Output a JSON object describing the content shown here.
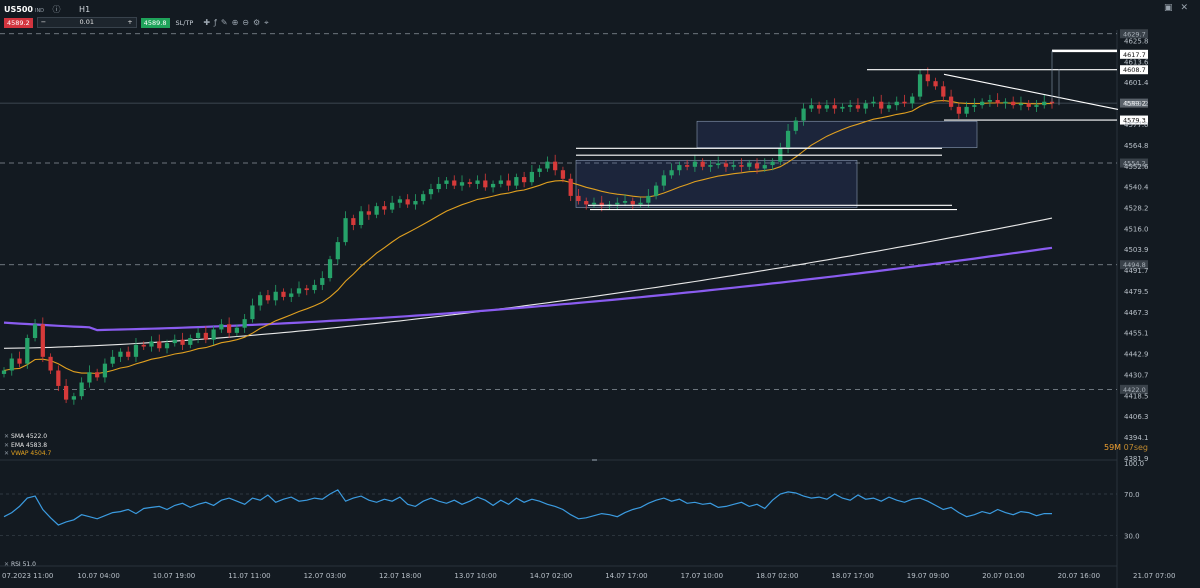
{
  "toolbar": {
    "symbol": "US500",
    "symbol_suffix": "IND",
    "timeframe": "H1",
    "sell_price": "4589.2",
    "quantity": "0.01",
    "buy_price": "4589.8",
    "sltp_label": "SL/TP"
  },
  "legend": {
    "sma": "SMA 4522.0",
    "ema": "EMA 4583.8",
    "vwap": "VWAP 4504.7",
    "rsi": "RSI 51.0"
  },
  "timer": {
    "minutes": "59M",
    "seconds": "07seg"
  },
  "colors": {
    "background": "#131a21",
    "bull": "#26a269",
    "bear": "#d63a3a",
    "sma": "#e8e8e8",
    "ema": "#e0a020",
    "vwap": "#8a5cf0",
    "rsi": "#3b9be0"
  },
  "chart_data": {
    "type": "candlestick",
    "x_axis_labels": [
      "07.2023 11:00",
      "10.07 04:00",
      "10.07 19:00",
      "11.07 11:00",
      "12.07 03:00",
      "12.07 18:00",
      "13.07 10:00",
      "14.07 02:00",
      "14.07 17:00",
      "17.07 10:00",
      "18.07 02:00",
      "18.07 17:00",
      "19.07 09:00",
      "20.07 01:00",
      "20.07 16:00",
      "21.07 07:00"
    ],
    "y_axis_labels": [
      "4625.8",
      "4613.6",
      "4601.4",
      "4589.2",
      "4577.0",
      "4564.8",
      "4552.6",
      "4540.4",
      "4528.2",
      "4516.0",
      "4503.9",
      "4491.7",
      "4479.5",
      "4467.3",
      "4455.1",
      "4442.9",
      "4430.7",
      "4418.5",
      "4406.3",
      "4394.1",
      "4381.9"
    ],
    "ylim": [
      4381.9,
      4631.9
    ],
    "horizontal_levels": [
      "4629.7",
      "4554.2",
      "4494.8",
      "4422.0"
    ],
    "price_tags": [
      "4617.7",
      "4608.7",
      "4589.2",
      "4579.3"
    ],
    "close_series": [
      4433,
      4440,
      4437,
      4452,
      4460,
      4441,
      4433,
      4424,
      4416,
      4418,
      4426,
      4432,
      4429,
      4437,
      4441,
      4444,
      4441,
      4448,
      4447,
      4450,
      4446,
      4449,
      4451,
      4448,
      4452,
      4455,
      4451,
      4457,
      4460,
      4455,
      4458,
      4463,
      4471,
      4477,
      4474,
      4479,
      4476,
      4478,
      4481,
      4480,
      4483,
      4487,
      4498,
      4508,
      4522,
      4518,
      4526,
      4524,
      4529,
      4527,
      4531,
      4533,
      4530,
      4532,
      4536,
      4539,
      4542,
      4544,
      4541,
      4543,
      4542,
      4544,
      4540,
      4542,
      4544,
      4541,
      4546,
      4543,
      4549,
      4551,
      4555,
      4550,
      4545,
      4535,
      4532,
      4530,
      4531,
      4529,
      4530,
      4531,
      4532,
      4530,
      4531,
      4535,
      4541,
      4547,
      4550,
      4553,
      4552,
      4555,
      4552,
      4553,
      4554,
      4552,
      4553,
      4552,
      4554,
      4551,
      4553,
      4555,
      4563,
      4573,
      4579,
      4586,
      4588,
      4586,
      4588,
      4586,
      4587,
      4588,
      4586,
      4589,
      4590,
      4586,
      4588,
      4590,
      4589,
      4593,
      4606,
      4602,
      4599,
      4593,
      4587,
      4583,
      4587,
      4588,
      4590,
      4591,
      4589,
      4590,
      4588,
      4589,
      4587,
      4588,
      4590,
      4589
    ],
    "indicators": {
      "sma": 4522.0,
      "ema": 4583.8,
      "vwap": 4504.7
    },
    "rsi": {
      "axis_labels": [
        "100.0",
        "70.0",
        "30.0"
      ],
      "levels": [
        100,
        70,
        30
      ],
      "last": 51.0,
      "values": [
        48,
        52,
        58,
        66,
        68,
        55,
        47,
        40,
        43,
        45,
        50,
        48,
        46,
        49,
        52,
        53,
        55,
        51,
        56,
        57,
        58,
        55,
        59,
        61,
        57,
        60,
        62,
        59,
        64,
        66,
        63,
        60,
        66,
        64,
        69,
        62,
        65,
        67,
        63,
        64,
        66,
        65,
        70,
        74,
        63,
        66,
        68,
        64,
        62,
        65,
        63,
        67,
        60,
        58,
        63,
        66,
        63,
        61,
        64,
        60,
        63,
        67,
        64,
        59,
        64,
        60,
        66,
        62,
        65,
        63,
        60,
        58,
        55,
        50,
        46,
        47,
        49,
        51,
        50,
        48,
        52,
        55,
        57,
        61,
        64,
        66,
        63,
        65,
        61,
        62,
        60,
        61,
        57,
        58,
        60,
        62,
        58,
        60,
        56,
        64,
        70,
        72,
        71,
        68,
        66,
        67,
        65,
        70,
        66,
        64,
        69,
        65,
        66,
        63,
        67,
        64,
        62,
        65,
        66,
        63,
        59,
        55,
        57,
        52,
        48,
        50,
        53,
        51,
        55,
        52,
        50,
        53,
        52,
        49,
        51,
        51
      ]
    }
  }
}
